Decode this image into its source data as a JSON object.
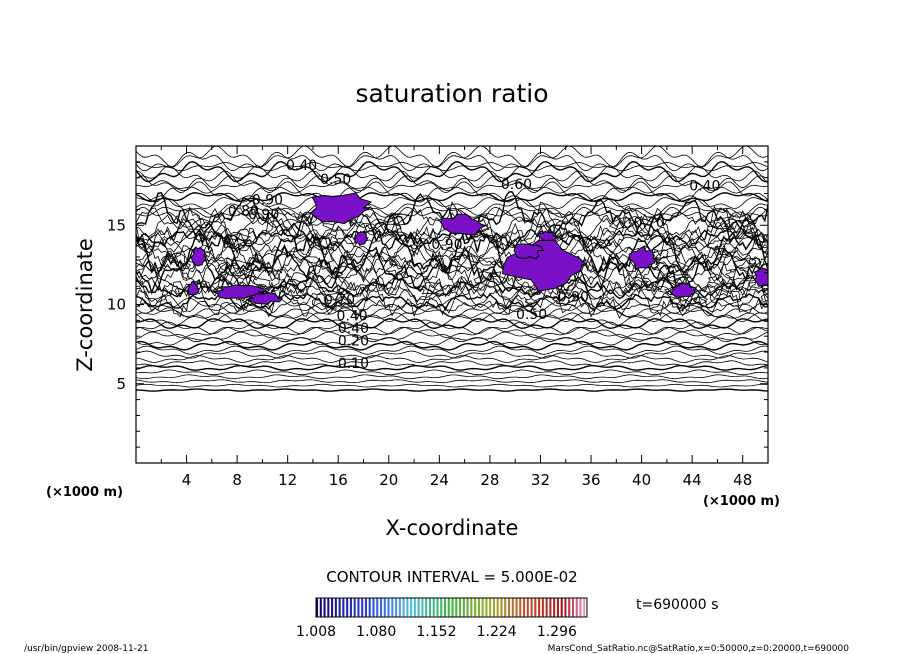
{
  "chart_data": {
    "type": "contour",
    "title": "saturation ratio",
    "xlabel": "X-coordinate",
    "ylabel": "Z-coordinate",
    "x_unit": "(×1000 m)",
    "z_unit": "(×1000 m)",
    "xlim": [
      0,
      50
    ],
    "zlim": [
      0,
      20
    ],
    "x_ticks": [
      4,
      8,
      12,
      16,
      20,
      24,
      28,
      32,
      36,
      40,
      44,
      48
    ],
    "z_ticks": [
      5,
      10,
      15
    ],
    "contour_interval_text": "CONTOUR INTERVAL = 5.000E-02",
    "contour_labels": [
      {
        "text": "0.10",
        "x": 17.2,
        "z": 6.0
      },
      {
        "text": "0.20",
        "x": 17.2,
        "z": 7.4
      },
      {
        "text": "0.40",
        "x": 17.2,
        "z": 8.2
      },
      {
        "text": "0.40",
        "x": 17.1,
        "z": 9.0
      },
      {
        "text": "0.70",
        "x": 16.1,
        "z": 10.0
      },
      {
        "text": "0.50",
        "x": 31.3,
        "z": 9.1
      },
      {
        "text": "0.90",
        "x": 34.6,
        "z": 10.2
      },
      {
        "text": "0.40",
        "x": 13.1,
        "z": 18.5
      },
      {
        "text": "0.50",
        "x": 15.8,
        "z": 17.6
      },
      {
        "text": "0.60",
        "x": 30.1,
        "z": 17.3
      },
      {
        "text": "0.40",
        "x": 45.0,
        "z": 17.2
      },
      {
        "text": "0.90",
        "x": 10.4,
        "z": 16.3
      },
      {
        "text": "0.80",
        "x": 8.5,
        "z": 15.6
      },
      {
        "text": "0.90",
        "x": 10.1,
        "z": 15.4
      },
      {
        "text": "0.70",
        "x": 40.6,
        "z": 14.9
      },
      {
        "text": "0.90",
        "x": 24.6,
        "z": 13.5
      }
    ],
    "shaded_threshold": 1.0,
    "shaded_color": "#7a11c9",
    "colorbar": {
      "min": 1.008,
      "max": 1.332,
      "tick_values": [
        1.008,
        1.08,
        1.152,
        1.224,
        1.296
      ],
      "tick_labels": [
        "1.008",
        "1.080",
        "1.152",
        "1.224",
        "1.296"
      ]
    }
  },
  "annotations": {
    "time": "t=690000  s",
    "footer_left": "/usr/bin/gpview   2008-11-21",
    "footer_right": "MarsCond_SatRatio.nc@SatRatio,x=0:50000,z=0:20000,t=690000"
  }
}
